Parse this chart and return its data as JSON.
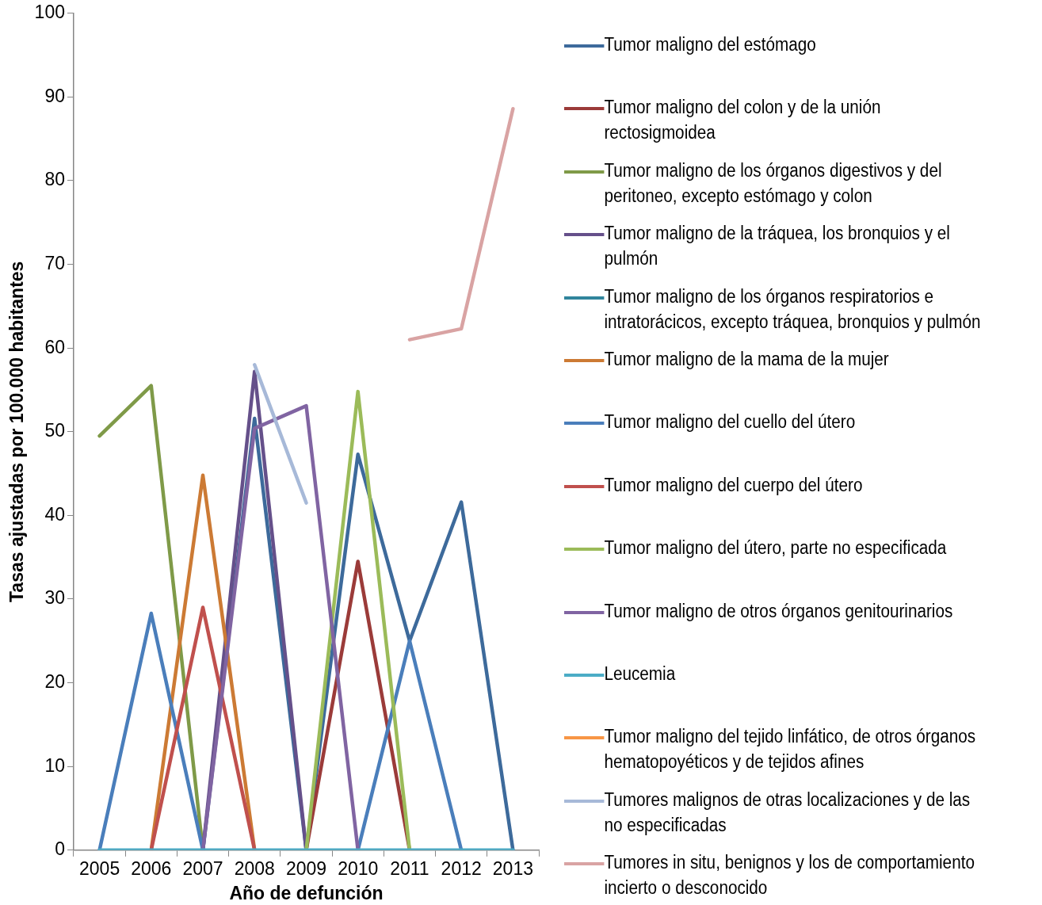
{
  "chart_data": {
    "type": "line",
    "xlabel": "Año de defunción",
    "ylabel": "Tasas ajustadas por 100.000 habitantes",
    "categories": [
      "2005",
      "2006",
      "2007",
      "2008",
      "2009",
      "2010",
      "2011",
      "2012",
      "2013"
    ],
    "ylim": [
      0,
      100
    ],
    "yticks": [
      0,
      10,
      20,
      30,
      40,
      50,
      60,
      70,
      80,
      90,
      100
    ],
    "grid": false,
    "legend": "right",
    "marker": "none",
    "line_style": "solid",
    "series": [
      {
        "name": "Tumor maligno del estómago",
        "color": "#3d6a9b",
        "values": [
          null,
          null,
          0,
          51.6,
          0,
          47.3,
          25,
          41.6,
          0
        ]
      },
      {
        "name": "Tumor maligno del colon y de la unión rectosigmoidea",
        "color": "#9b3b39",
        "values": [
          null,
          null,
          null,
          null,
          0,
          34.5,
          0,
          null,
          null
        ]
      },
      {
        "name": "Tumor maligno de los órganos digestivos y del peritoneo, excepto estómago y colon",
        "color": "#7f9a48",
        "values": [
          49.5,
          55.5,
          0,
          null,
          null,
          null,
          null,
          null,
          null
        ]
      },
      {
        "name": "Tumor maligno de la tráquea, los bronquios y el pulmón",
        "color": "#65508a",
        "values": [
          null,
          null,
          0,
          57.2,
          0,
          null,
          null,
          null,
          null
        ]
      },
      {
        "name": "Tumor maligno de los órganos respiratorios e intratorácicos, excepto tráquea, bronquios y pulmón",
        "color": "#31859c",
        "values": [
          null,
          null,
          null,
          null,
          null,
          null,
          null,
          null,
          null
        ]
      },
      {
        "name": "Tumor maligno de la mama de la mujer",
        "color": "#cc7a34",
        "values": [
          null,
          0,
          44.8,
          0,
          null,
          null,
          null,
          null,
          null
        ]
      },
      {
        "name": "Tumor maligno del cuello del útero",
        "color": "#4a7ebb",
        "values": [
          0,
          28.3,
          0,
          null,
          null,
          0,
          25,
          0,
          null
        ]
      },
      {
        "name": "Tumor maligno del cuerpo del útero",
        "color": "#c0504d",
        "values": [
          null,
          0,
          29,
          0,
          null,
          null,
          null,
          null,
          null
        ]
      },
      {
        "name": "Tumor maligno del útero, parte no especificada",
        "color": "#9bbb59",
        "values": [
          null,
          null,
          null,
          null,
          0,
          54.8,
          0,
          null,
          null
        ]
      },
      {
        "name": "Tumor maligno de otros órganos genitourinarios",
        "color": "#8064a2",
        "values": [
          null,
          null,
          0,
          50.4,
          53.1,
          0,
          null,
          null,
          null
        ]
      },
      {
        "name": "Leucemia",
        "color": "#4bacc6",
        "values": [
          0,
          0,
          0,
          0,
          0,
          0,
          0,
          0,
          0
        ]
      },
      {
        "name": "Tumor maligno del tejido linfático, de otros órganos hematopoyéticos y de tejidos afines",
        "color": "#f79646",
        "values": [
          null,
          null,
          null,
          null,
          null,
          null,
          null,
          null,
          null
        ]
      },
      {
        "name": "Tumores malignos de otras localizaciones y de las no especificadas",
        "color": "#a7b9d8",
        "values": [
          null,
          null,
          null,
          58,
          41.5,
          null,
          null,
          null,
          null
        ]
      },
      {
        "name": "Tumores in situ, benignos y los de comportamiento incierto o desconocido",
        "color": "#d9a3a3",
        "values": [
          null,
          null,
          null,
          null,
          null,
          null,
          61,
          62.3,
          88.6
        ]
      }
    ]
  }
}
